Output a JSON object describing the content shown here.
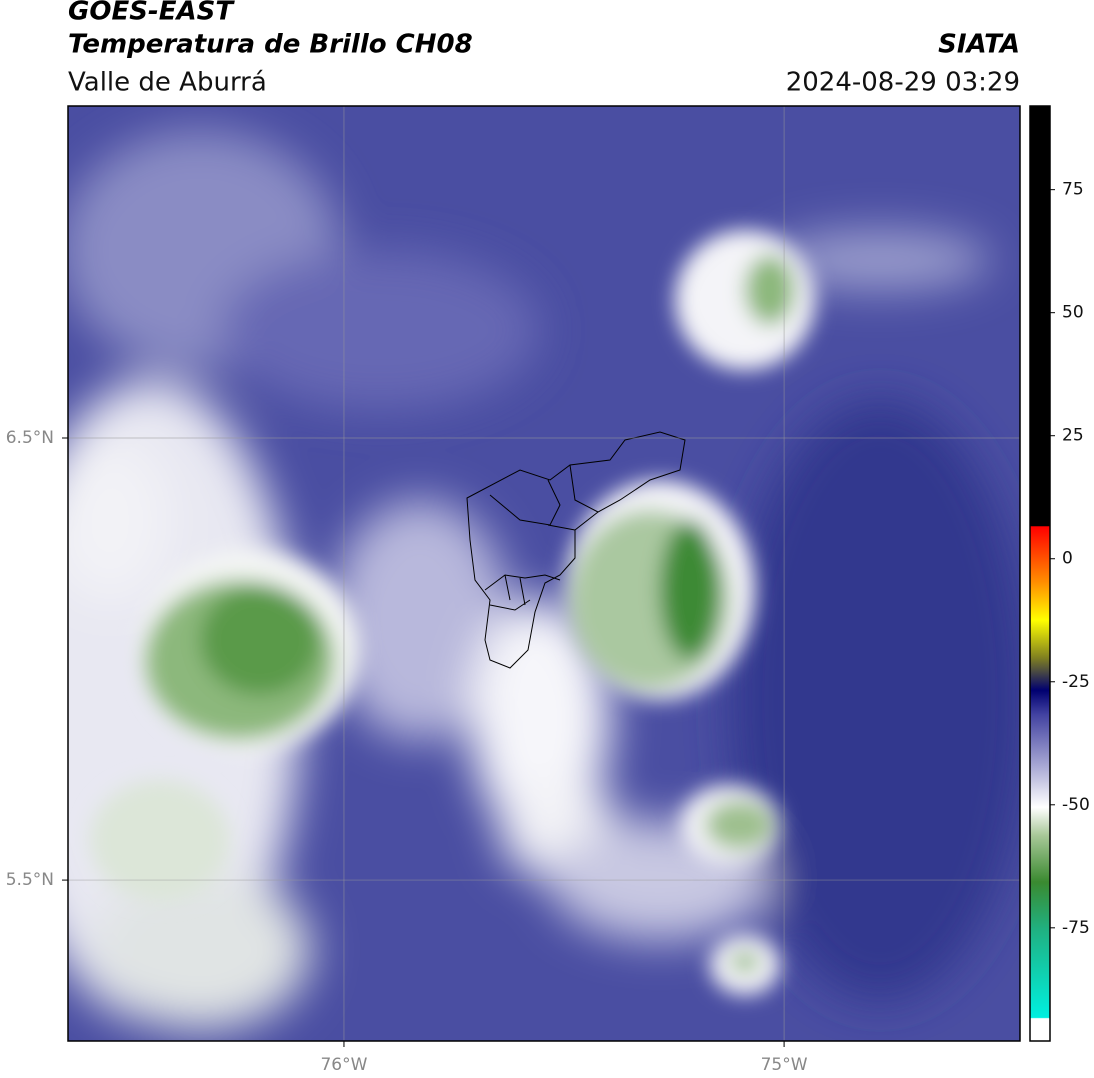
{
  "map": {
    "title": "GOES-EAST",
    "subtitle": "Temperatura de Brillo CH08",
    "region": "Valle de Aburrá",
    "source": "SIATA",
    "datetime": "2024-08-29 03:29",
    "xlim": [
      -76.627,
      -74.464
    ],
    "ylim": [
      5.136,
      7.251
    ],
    "xticks": [
      {
        "value": -76,
        "label": "76°W"
      },
      {
        "value": -75,
        "label": "75°W"
      }
    ],
    "yticks": [
      {
        "value": 6.5,
        "label": "6.5°N"
      },
      {
        "value": 5.5,
        "label": "5.5°N"
      }
    ],
    "grid": true,
    "colorbar": {
      "lim": [
        -98,
        92
      ],
      "ticks": [
        75,
        50,
        25,
        0,
        -25,
        -50,
        -75
      ]
    }
  }
}
